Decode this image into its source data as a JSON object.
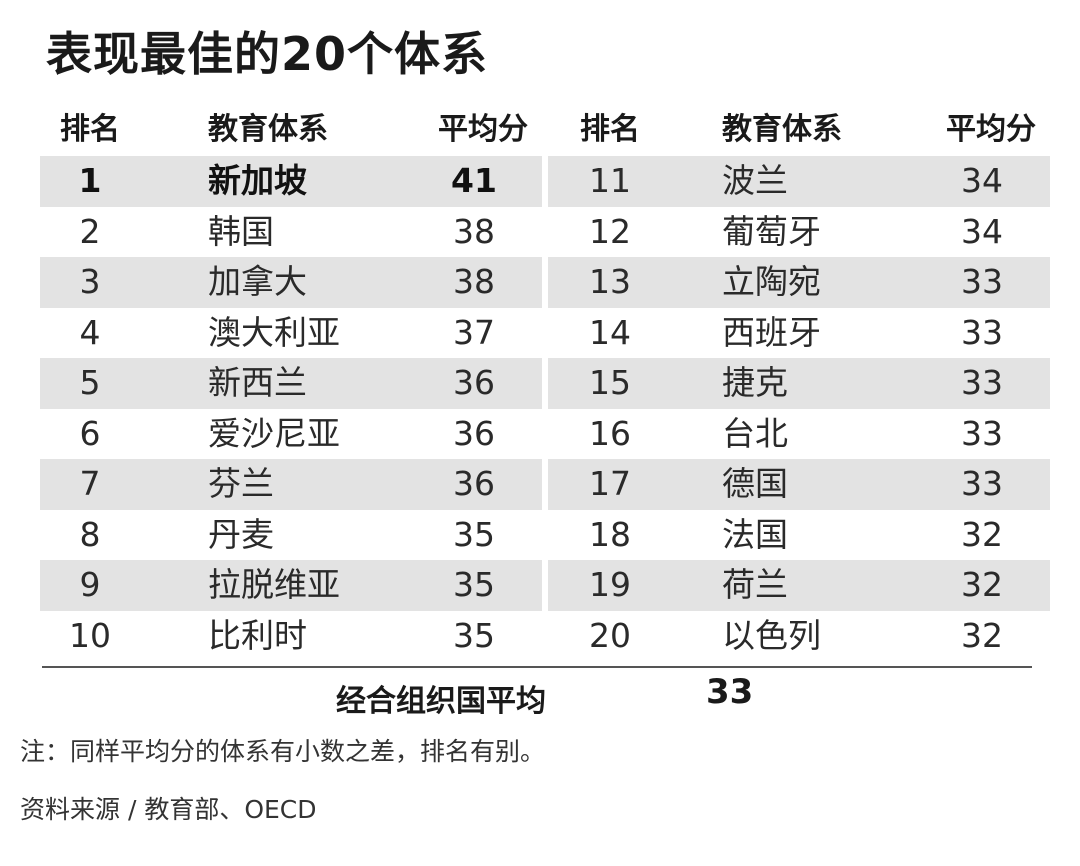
{
  "title": "表现最佳的20个体系",
  "headers": {
    "rank": "排名",
    "system": "教育体系",
    "score": "平均分"
  },
  "left_rows": [
    {
      "rank": "1",
      "system": "新加坡",
      "score": "41"
    },
    {
      "rank": "2",
      "system": "韩国",
      "score": "38"
    },
    {
      "rank": "3",
      "system": "加拿大",
      "score": "38"
    },
    {
      "rank": "4",
      "system": "澳大利亚",
      "score": "37"
    },
    {
      "rank": "5",
      "system": "新西兰",
      "score": "36"
    },
    {
      "rank": "6",
      "system": "爱沙尼亚",
      "score": "36"
    },
    {
      "rank": "7",
      "system": "芬兰",
      "score": "36"
    },
    {
      "rank": "8",
      "system": "丹麦",
      "score": "35"
    },
    {
      "rank": "9",
      "system": "拉脱维亚",
      "score": "35"
    },
    {
      "rank": "10",
      "system": "比利时",
      "score": "35"
    }
  ],
  "right_rows": [
    {
      "rank": "11",
      "system": "波兰",
      "score": "34"
    },
    {
      "rank": "12",
      "system": "葡萄牙",
      "score": "34"
    },
    {
      "rank": "13",
      "system": "立陶宛",
      "score": "33"
    },
    {
      "rank": "14",
      "system": "西班牙",
      "score": "33"
    },
    {
      "rank": "15",
      "system": "捷克",
      "score": "33"
    },
    {
      "rank": "16",
      "system": "台北",
      "score": "33"
    },
    {
      "rank": "17",
      "system": "德国",
      "score": "33"
    },
    {
      "rank": "18",
      "system": "法国",
      "score": "32"
    },
    {
      "rank": "19",
      "system": "荷兰",
      "score": "32"
    },
    {
      "rank": "20",
      "system": "以色列",
      "score": "32"
    }
  ],
  "oecd_average": {
    "label": "经合组织国平均",
    "value": "33"
  },
  "note": "注：同样平均分的体系有小数之差，排名有别。",
  "source": "资料来源 / 教育部、OECD",
  "colors": {
    "shaded_row": "#e3e3e3",
    "text": "#222222",
    "divider": "#555555"
  }
}
